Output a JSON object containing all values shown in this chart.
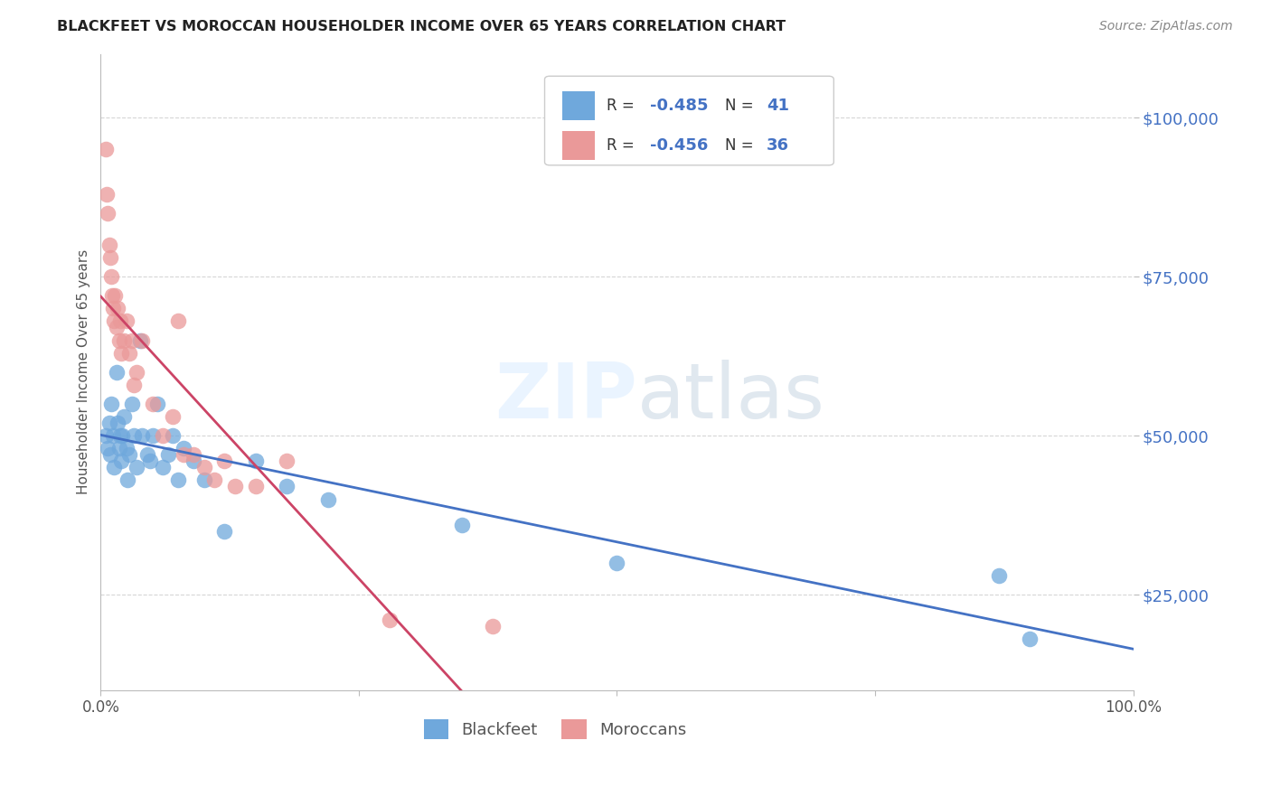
{
  "title": "BLACKFEET VS MOROCCAN HOUSEHOLDER INCOME OVER 65 YEARS CORRELATION CHART",
  "source": "Source: ZipAtlas.com",
  "ylabel": "Householder Income Over 65 years",
  "watermark": "ZIPatlas",
  "blackfeet_R": -0.485,
  "blackfeet_N": 41,
  "moroccan_R": -0.456,
  "moroccan_N": 36,
  "xlim": [
    0,
    1.0
  ],
  "ylim": [
    10000,
    110000
  ],
  "yticks": [
    25000,
    50000,
    75000,
    100000
  ],
  "ytick_labels": [
    "$25,000",
    "$50,000",
    "$75,000",
    "$100,000"
  ],
  "xticks": [
    0.0,
    0.25,
    0.5,
    0.75,
    1.0
  ],
  "xtick_labels": [
    "0.0%",
    "",
    "",
    "",
    "100.0%"
  ],
  "blackfeet_color": "#6fa8dc",
  "moroccan_color": "#ea9999",
  "blackfeet_line_color": "#4472c4",
  "moroccan_line_color": "#cc4466",
  "blackfeet_x": [
    0.005,
    0.007,
    0.008,
    0.009,
    0.01,
    0.012,
    0.013,
    0.015,
    0.016,
    0.018,
    0.019,
    0.02,
    0.021,
    0.022,
    0.025,
    0.026,
    0.028,
    0.03,
    0.032,
    0.035,
    0.038,
    0.04,
    0.045,
    0.048,
    0.05,
    0.055,
    0.06,
    0.065,
    0.07,
    0.075,
    0.08,
    0.09,
    0.1,
    0.12,
    0.15,
    0.18,
    0.22,
    0.35,
    0.5,
    0.87,
    0.9
  ],
  "blackfeet_y": [
    50000,
    48000,
    52000,
    47000,
    55000,
    50000,
    45000,
    60000,
    52000,
    48000,
    50000,
    46000,
    50000,
    53000,
    48000,
    43000,
    47000,
    55000,
    50000,
    45000,
    65000,
    50000,
    47000,
    46000,
    50000,
    55000,
    45000,
    47000,
    50000,
    43000,
    48000,
    46000,
    43000,
    35000,
    46000,
    42000,
    40000,
    36000,
    30000,
    28000,
    18000
  ],
  "moroccan_x": [
    0.005,
    0.006,
    0.007,
    0.008,
    0.009,
    0.01,
    0.011,
    0.012,
    0.013,
    0.014,
    0.015,
    0.016,
    0.018,
    0.019,
    0.02,
    0.022,
    0.025,
    0.028,
    0.03,
    0.032,
    0.035,
    0.04,
    0.05,
    0.06,
    0.07,
    0.075,
    0.08,
    0.09,
    0.1,
    0.11,
    0.12,
    0.13,
    0.15,
    0.18,
    0.28,
    0.38
  ],
  "moroccan_y": [
    95000,
    88000,
    85000,
    80000,
    78000,
    75000,
    72000,
    70000,
    68000,
    72000,
    67000,
    70000,
    65000,
    68000,
    63000,
    65000,
    68000,
    63000,
    65000,
    58000,
    60000,
    65000,
    55000,
    50000,
    53000,
    68000,
    47000,
    47000,
    45000,
    43000,
    46000,
    42000,
    42000,
    46000,
    21000,
    20000
  ],
  "background_color": "#ffffff",
  "grid_color": "#cccccc",
  "title_color": "#222222"
}
